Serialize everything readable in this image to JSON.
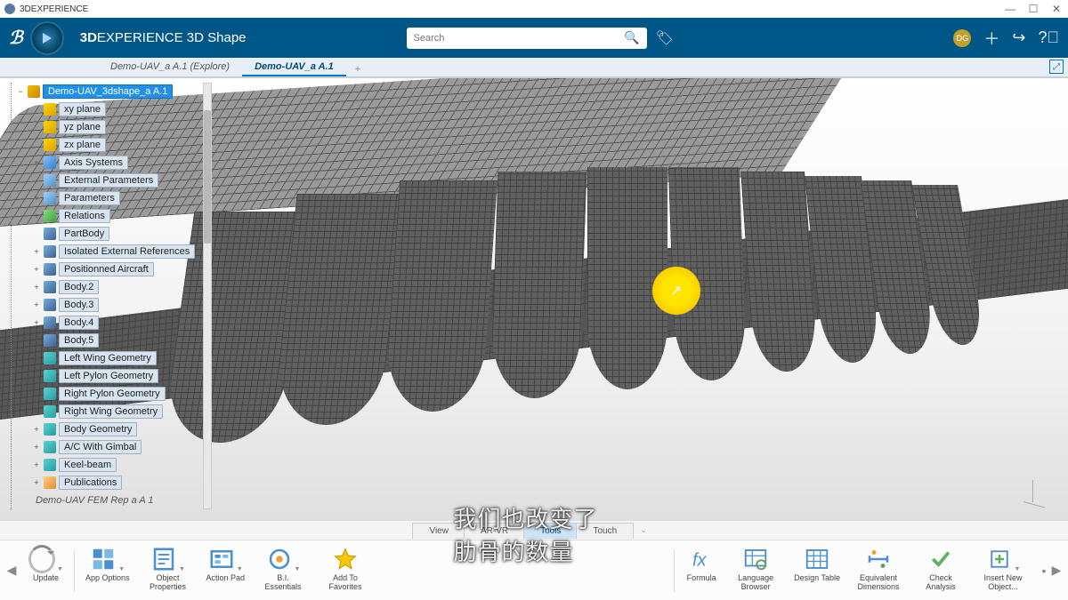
{
  "window": {
    "title": "3DEXPERIENCE"
  },
  "header": {
    "app_prefix": "3D",
    "app_name": "EXPERIENCE 3D Shape",
    "search_placeholder": "Search",
    "user_initials": "DG"
  },
  "tabs": {
    "items": [
      {
        "label": "Demo-UAV_a A.1 (Explore)",
        "active": false
      },
      {
        "label": "Demo-UAV_a A.1",
        "active": true
      }
    ]
  },
  "tree": {
    "root": "Demo-UAV_3dshape_a A.1",
    "nodes": [
      {
        "label": "xy plane",
        "icon": "ic-plane"
      },
      {
        "label": "yz plane",
        "icon": "ic-plane"
      },
      {
        "label": "zx plane",
        "icon": "ic-plane"
      },
      {
        "label": "Axis Systems",
        "icon": "ic-axis",
        "expander": "+"
      },
      {
        "label": "External Parameters",
        "icon": "ic-param"
      },
      {
        "label": "Parameters",
        "icon": "ic-param",
        "expander": "+"
      },
      {
        "label": "Relations",
        "icon": "ic-rel",
        "expander": "+"
      },
      {
        "label": "PartBody",
        "icon": "ic-body"
      },
      {
        "label": "Isolated External References",
        "icon": "ic-body",
        "expander": "+"
      },
      {
        "label": "Positionned Aircraft",
        "icon": "ic-body",
        "expander": "+"
      },
      {
        "label": "Body.2",
        "icon": "ic-body",
        "expander": "+"
      },
      {
        "label": "Body.3",
        "icon": "ic-body",
        "expander": "+"
      },
      {
        "label": "Body.4",
        "icon": "ic-body",
        "expander": "+"
      },
      {
        "label": "Body.5",
        "icon": "ic-body",
        "expander": "+"
      },
      {
        "label": "Left Wing Geometry",
        "icon": "ic-geo",
        "expander": "+"
      },
      {
        "label": "Left Pylon Geometry",
        "icon": "ic-geo",
        "expander": "+"
      },
      {
        "label": "Right Pylon Geometry",
        "icon": "ic-geo",
        "expander": "+"
      },
      {
        "label": "Right Wing Geometry",
        "icon": "ic-geo",
        "expander": "+"
      },
      {
        "label": "Body Geometry",
        "icon": "ic-geo",
        "expander": "+"
      },
      {
        "label": "A/C With Gimbal",
        "icon": "ic-geo",
        "expander": "+"
      },
      {
        "label": "Keel-beam",
        "icon": "ic-geo",
        "expander": "+"
      },
      {
        "label": "Publications",
        "icon": "ic-pub",
        "expander": "+"
      }
    ],
    "truncated": "Demo-UAV FEM Rep a A 1"
  },
  "view_tabs": {
    "items": [
      "View",
      "AR-VR",
      "Tools",
      "Touch"
    ],
    "active_index": 2
  },
  "toolbar": {
    "left": [
      {
        "label": "Update",
        "icon": "update"
      }
    ],
    "group1": [
      {
        "label": "App Options",
        "icon": "app-options"
      },
      {
        "label": "Object Properties",
        "icon": "obj-props"
      },
      {
        "label": "Action Pad",
        "icon": "action-pad"
      },
      {
        "label": "B.I. Essentials",
        "icon": "bi"
      },
      {
        "label": "Add To Favorites",
        "icon": "fav"
      }
    ],
    "group2": [
      {
        "label": "Formula",
        "icon": "fx"
      },
      {
        "label": "Language Browser",
        "icon": "lang"
      },
      {
        "label": "Design Table",
        "icon": "table"
      },
      {
        "label": "Equivalent Dimensions",
        "icon": "dim"
      },
      {
        "label": "Check Analysis",
        "icon": "check"
      },
      {
        "label": "Insert New Object...",
        "icon": "insert"
      }
    ]
  },
  "subtitle": "我们也改变了肋骨的数量",
  "colors": {
    "brand": "#005686",
    "accent": "#0078c8",
    "highlight": "#ffe400"
  }
}
